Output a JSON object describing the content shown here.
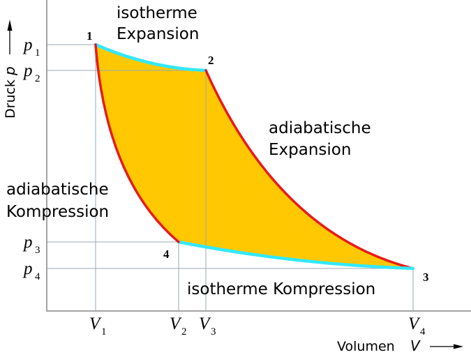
{
  "colors": {
    "fill": "#ffc800",
    "isotherm": "#33e8ff",
    "adiabat": "#e81a1a",
    "axis": "#a3a3a3",
    "guide": "#9aa9b2"
  },
  "labels": {
    "iso_expansion_1": "isotherme",
    "iso_expansion_2": "Expansion",
    "adia_expansion_1": "adiabatische",
    "adia_expansion_2": "Expansion",
    "adia_compression_1": "adiabatische",
    "adia_compression_2": "Kompression",
    "iso_compression": "isotherme Kompression"
  },
  "points": {
    "p1": "1",
    "p2": "2",
    "p3": "3",
    "p4": "4"
  },
  "y_ticks": [
    {
      "var": "p",
      "sub": "1"
    },
    {
      "var": "p",
      "sub": "2"
    },
    {
      "var": "p",
      "sub": "3"
    },
    {
      "var": "p",
      "sub": "4"
    }
  ],
  "x_ticks": [
    {
      "var": "V",
      "sub": "1"
    },
    {
      "var": "V",
      "sub": "2"
    },
    {
      "var": "V",
      "sub": "3"
    },
    {
      "var": "V",
      "sub": "4"
    }
  ],
  "axes": {
    "x_title": "Volumen",
    "x_var": "V",
    "y_title": "Druck",
    "y_var": "p"
  }
}
